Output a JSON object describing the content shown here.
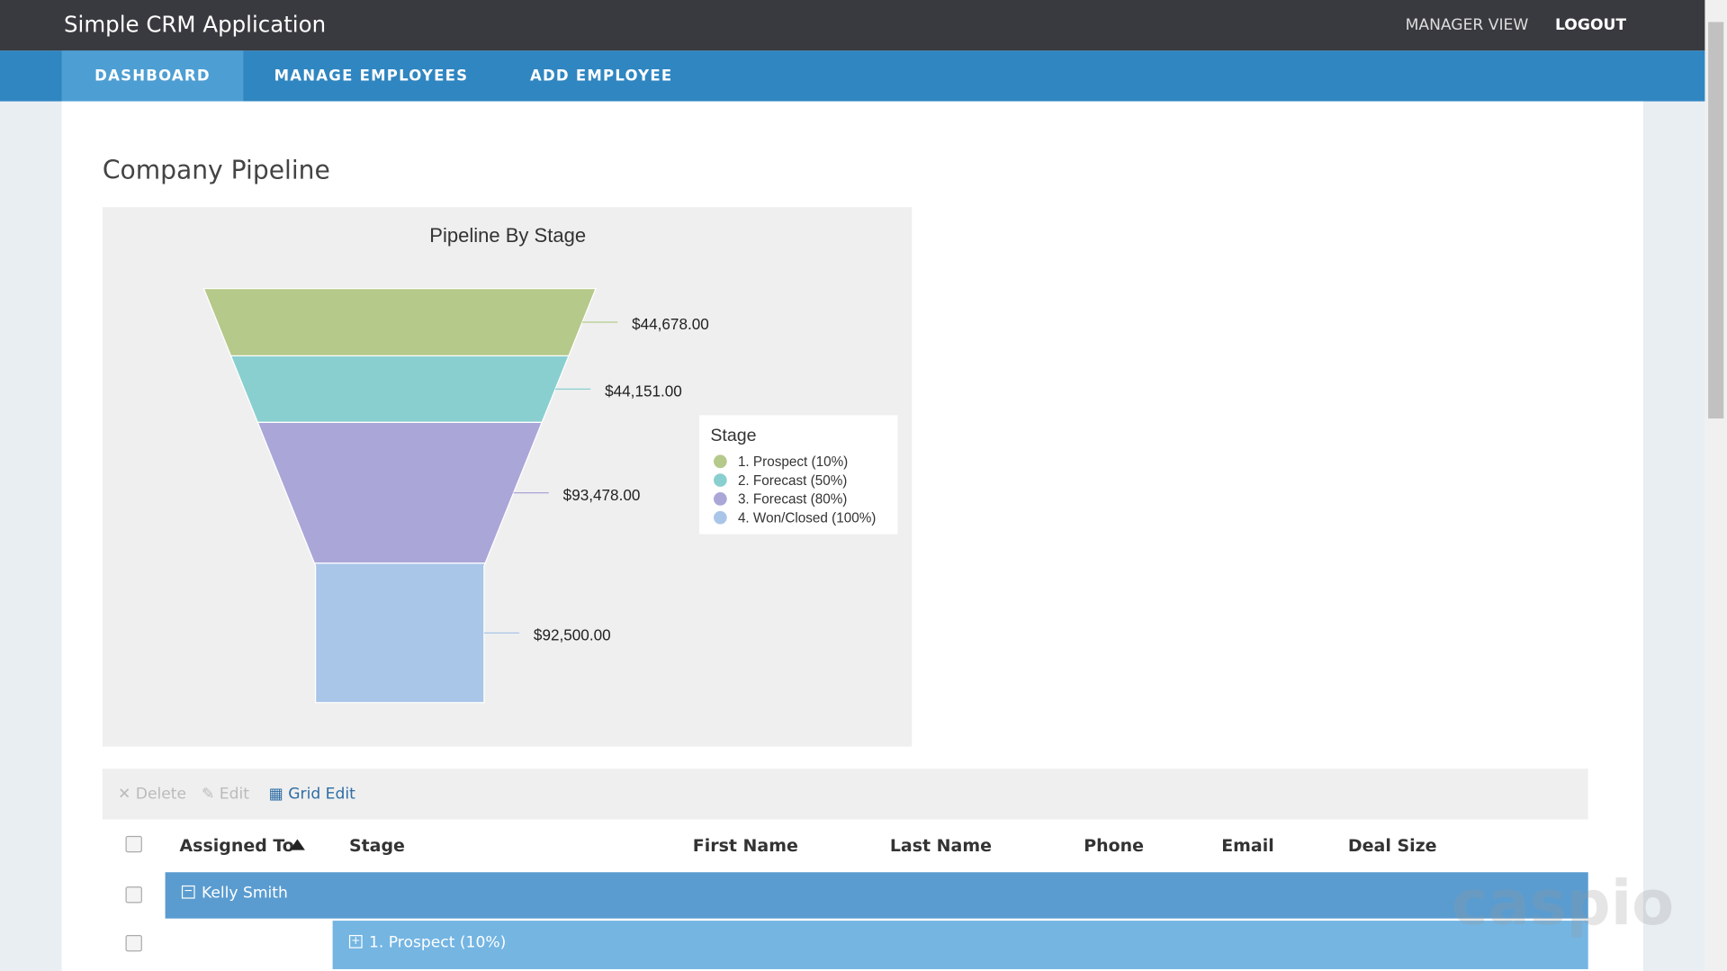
{
  "header": {
    "app_title": "Simple CRM Application",
    "links": [
      "MANAGER VIEW",
      "LOGOUT"
    ]
  },
  "tabs": [
    "DASHBOARD",
    "MANAGE EMPLOYEES",
    "ADD EMPLOYEE"
  ],
  "page_heading": "Company Pipeline",
  "chart_data": {
    "type": "funnel",
    "title": "Pipeline By Stage",
    "categories": [
      "1. Prospect (10%)",
      "2. Forecast (50%)",
      "3. Forecast (80%)",
      "4. Won/Closed (100%)"
    ],
    "values": [
      44678,
      44151,
      93478,
      92500
    ],
    "value_labels": [
      "$44,678.00",
      "$44,151.00",
      "$93,478.00",
      "$92,500.00"
    ],
    "colors": [
      "#b5c98a",
      "#8acfd0",
      "#aaa6d8",
      "#a9c6e8"
    ],
    "legend_title": "Stage",
    "legend_position": "right"
  },
  "grid": {
    "toolbar": [
      "Delete",
      "Edit",
      "Grid Edit"
    ],
    "columns": [
      "Assigned To",
      "Stage",
      "First Name",
      "Last Name",
      "Phone",
      "Email",
      "Deal Size"
    ],
    "group_rows": [
      "Kelly Smith",
      "1. Prospect (10%)"
    ]
  },
  "watermark": "caspio"
}
